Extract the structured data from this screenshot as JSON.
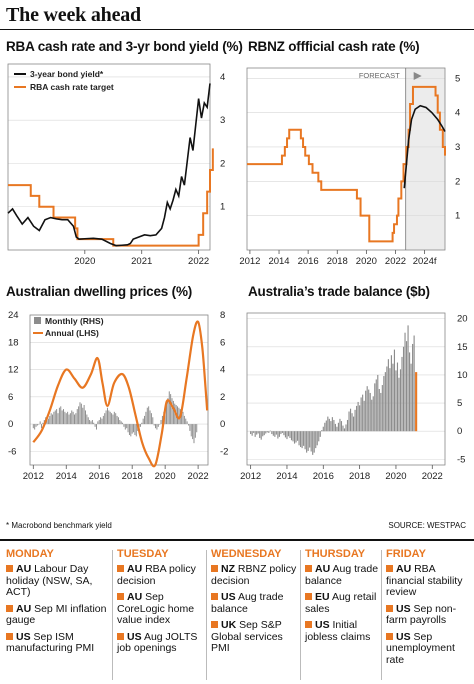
{
  "header": {
    "title": "The week ahead"
  },
  "colors": {
    "orange": "#e87722",
    "black": "#111111",
    "grey": "#8c8c8c"
  },
  "chart_data": [
    {
      "type": "line",
      "title": "RBA cash rate and 3-yr bond yield (%)",
      "x_ticks": [
        "2020",
        "2021",
        "2022"
      ],
      "y_ticks": [
        "1",
        "2",
        "3",
        "4"
      ],
      "ylim": [
        0,
        4.3
      ],
      "xlim": [
        2019.0,
        2022.55
      ],
      "y_axis_side": "right",
      "legend": "top-left",
      "series": [
        {
          "name": "3-year bond yield*",
          "color": "#111111",
          "points": [
            [
              2019.0,
              0.85
            ],
            [
              2019.08,
              0.95
            ],
            [
              2019.15,
              0.8
            ],
            [
              2019.25,
              0.6
            ],
            [
              2019.35,
              0.75
            ],
            [
              2019.45,
              0.55
            ],
            [
              2019.55,
              0.45
            ],
            [
              2019.65,
              0.7
            ],
            [
              2019.75,
              0.75
            ],
            [
              2019.85,
              0.72
            ],
            [
              2019.95,
              0.7
            ],
            [
              2020.05,
              0.7
            ],
            [
              2020.15,
              0.55
            ],
            [
              2020.2,
              0.3
            ],
            [
              2020.25,
              0.25
            ],
            [
              2020.35,
              0.26
            ],
            [
              2020.5,
              0.27
            ],
            [
              2020.65,
              0.25
            ],
            [
              2020.8,
              0.15
            ],
            [
              2020.9,
              0.1
            ],
            [
              2021.0,
              0.11
            ],
            [
              2021.1,
              0.12
            ],
            [
              2021.15,
              0.15
            ],
            [
              2021.2,
              0.25
            ],
            [
              2021.3,
              0.3
            ],
            [
              2021.4,
              0.35
            ],
            [
              2021.5,
              0.33
            ],
            [
              2021.6,
              0.35
            ],
            [
              2021.7,
              0.5
            ],
            [
              2021.75,
              0.75
            ],
            [
              2021.8,
              1.1
            ],
            [
              2021.85,
              0.95
            ],
            [
              2021.9,
              1.15
            ],
            [
              2021.95,
              1.4
            ],
            [
              2022.0,
              1.25
            ],
            [
              2022.05,
              1.7
            ],
            [
              2022.1,
              1.5
            ],
            [
              2022.15,
              2.05
            ],
            [
              2022.2,
              2.6
            ],
            [
              2022.25,
              2.3
            ],
            [
              2022.3,
              2.9
            ],
            [
              2022.35,
              3.5
            ],
            [
              2022.4,
              3.05
            ],
            [
              2022.45,
              3.4
            ],
            [
              2022.5,
              3.3
            ],
            [
              2022.55,
              3.85
            ]
          ]
        },
        {
          "name": "RBA cash rate target",
          "color": "#e87722",
          "step": true,
          "points": [
            [
              2019.0,
              1.5
            ],
            [
              2019.4,
              1.25
            ],
            [
              2019.55,
              1.0
            ],
            [
              2019.8,
              0.75
            ],
            [
              2020.18,
              0.5
            ],
            [
              2020.22,
              0.25
            ],
            [
              2020.85,
              0.1
            ],
            [
              2022.35,
              0.35
            ],
            [
              2022.43,
              0.85
            ],
            [
              2022.5,
              1.35
            ],
            [
              2022.55,
              1.85
            ],
            [
              2022.6,
              2.35
            ]
          ]
        }
      ]
    },
    {
      "type": "line",
      "title": "RBNZ offficial cash rate (%)",
      "annotation": "FORECAST",
      "x_ticks": [
        "2012",
        "2014",
        "2016",
        "2018",
        "2020",
        "2022",
        "2024f"
      ],
      "y_ticks": [
        "1",
        "2",
        "3",
        "4",
        "5"
      ],
      "ylim": [
        0,
        5.3
      ],
      "xlim": [
        2011.8,
        2025.4
      ],
      "forecast_start": 2022.7,
      "y_axis_side": "right",
      "series": [
        {
          "name": "Official cash rate",
          "color": "#e87722",
          "step": true,
          "points": [
            [
              2011.8,
              2.5
            ],
            [
              2014.2,
              2.75
            ],
            [
              2014.4,
              3.0
            ],
            [
              2014.55,
              3.25
            ],
            [
              2014.7,
              3.5
            ],
            [
              2015.5,
              3.25
            ],
            [
              2015.65,
              3.0
            ],
            [
              2015.8,
              2.75
            ],
            [
              2016.05,
              2.5
            ],
            [
              2016.3,
              2.25
            ],
            [
              2016.7,
              2.0
            ],
            [
              2016.9,
              1.75
            ],
            [
              2019.35,
              1.5
            ],
            [
              2019.6,
              1.0
            ],
            [
              2020.2,
              0.25
            ],
            [
              2021.8,
              0.5
            ],
            [
              2021.9,
              0.75
            ],
            [
              2022.1,
              1.0
            ],
            [
              2022.2,
              1.5
            ],
            [
              2022.4,
              2.0
            ],
            [
              2022.55,
              2.5
            ],
            [
              2022.75,
              3.0
            ],
            [
              2022.9,
              3.5
            ],
            [
              2023.0,
              4.25
            ],
            [
              2023.2,
              4.75
            ],
            [
              2024.75,
              4.5
            ],
            [
              2024.9,
              4.0
            ],
            [
              2025.05,
              3.5
            ],
            [
              2025.25,
              3.0
            ],
            [
              2025.4,
              2.75
            ]
          ]
        },
        {
          "name": "Forecast path",
          "color": "#111111",
          "points": [
            [
              2022.6,
              1.8
            ],
            [
              2022.75,
              2.5
            ],
            [
              2022.9,
              3.2
            ],
            [
              2023.1,
              3.8
            ],
            [
              2023.35,
              4.1
            ],
            [
              2023.7,
              4.2
            ],
            [
              2024.1,
              4.15
            ],
            [
              2024.5,
              4.0
            ],
            [
              2024.9,
              3.8
            ],
            [
              2025.2,
              3.6
            ],
            [
              2025.4,
              3.45
            ]
          ]
        }
      ]
    },
    {
      "type": "bar",
      "title": "Australian dwelling prices (%)",
      "x_ticks": [
        "2012",
        "2014",
        "2016",
        "2018",
        "2020",
        "2022"
      ],
      "y_ticks_left": [
        "-6",
        "0",
        "6",
        "12",
        "18",
        "24"
      ],
      "y_ticks_right": [
        "-2",
        "0",
        "2",
        "4",
        "6",
        "8"
      ],
      "ylim_left": [
        -9,
        24
      ],
      "ylim_right": [
        -3,
        8
      ],
      "xlim": [
        2011.8,
        2022.6
      ],
      "legend": "top-left",
      "series": [
        {
          "name": "Monthly (RHS)",
          "color": "#8c8c8c",
          "axis": "right",
          "monthly_start": 2012.0,
          "values": [
            -0.3,
            -0.4,
            -0.2,
            -0.1,
            0.0,
            0.2,
            -0.3,
            0.1,
            0.3,
            0.5,
            0.3,
            0.4,
            0.6,
            0.8,
            0.7,
            0.9,
            1.0,
            1.1,
            0.8,
            1.2,
            1.3,
            1.0,
            1.1,
            0.9,
            0.8,
            0.9,
            0.7,
            0.8,
            1.0,
            0.9,
            0.7,
            0.8,
            1.1,
            1.3,
            1.6,
            1.5,
            1.2,
            1.4,
            1.0,
            0.7,
            0.5,
            0.3,
            0.2,
            0.3,
            0.1,
            -0.2,
            -0.4,
            0.2,
            0.3,
            0.5,
            0.4,
            0.6,
            0.8,
            1.0,
            1.2,
            1.0,
            0.9,
            0.8,
            0.7,
            0.9,
            0.8,
            0.6,
            0.5,
            0.3,
            0.2,
            0.1,
            -0.2,
            -0.4,
            -0.3,
            -0.6,
            -0.8,
            -0.9,
            -0.7,
            -0.6,
            -0.8,
            -0.9,
            -0.5,
            -0.3,
            -0.2,
            0.1,
            0.4,
            0.6,
            0.9,
            1.2,
            1.3,
            1.0,
            0.8,
            0.5,
            -0.1,
            -0.3,
            -0.4,
            -0.2,
            0.0,
            0.3,
            0.6,
            0.9,
            1.2,
            1.6,
            1.9,
            2.4,
            2.2,
            1.9,
            1.7,
            1.5,
            1.4,
            1.3,
            1.2,
            1.1,
            1.0,
            0.9,
            0.6,
            0.4,
            0.2,
            -0.1,
            -0.5,
            -0.9,
            -1.1,
            -1.4,
            -1.0,
            -0.6
          ]
        },
        {
          "name": "Annual (LHS)",
          "color": "#e87722",
          "axis": "left",
          "points": [
            [
              2012.0,
              -4.0
            ],
            [
              2012.5,
              -1.5
            ],
            [
              2013.0,
              3.0
            ],
            [
              2013.5,
              8.5
            ],
            [
              2014.0,
              12.0
            ],
            [
              2014.5,
              10.0
            ],
            [
              2015.0,
              8.0
            ],
            [
              2015.5,
              11.0
            ],
            [
              2015.9,
              14.5
            ],
            [
              2016.2,
              9.0
            ],
            [
              2016.5,
              4.0
            ],
            [
              2016.9,
              9.0
            ],
            [
              2017.4,
              11.0
            ],
            [
              2017.8,
              8.0
            ],
            [
              2018.2,
              2.0
            ],
            [
              2018.6,
              -4.0
            ],
            [
              2019.0,
              -7.5
            ],
            [
              2019.4,
              -9.0
            ],
            [
              2019.8,
              -2.0
            ],
            [
              2020.1,
              5.0
            ],
            [
              2020.5,
              3.5
            ],
            [
              2020.9,
              1.5
            ],
            [
              2021.3,
              10.0
            ],
            [
              2021.7,
              19.5
            ],
            [
              2022.0,
              22.5
            ],
            [
              2022.25,
              17.0
            ],
            [
              2022.45,
              8.0
            ],
            [
              2022.55,
              3.0
            ]
          ]
        }
      ]
    },
    {
      "type": "bar",
      "title": "Australia’s trade balance ($b)",
      "x_ticks": [
        "2012",
        "2014",
        "2016",
        "2018",
        "2020",
        "2022"
      ],
      "y_ticks": [
        "-5",
        "0",
        "5",
        "10",
        "15",
        "20"
      ],
      "ylim": [
        -6,
        21
      ],
      "xlim": [
        2011.8,
        2022.7
      ],
      "y_axis_side": "right",
      "highlight_last": true,
      "monthly_start": 2012.0,
      "values": [
        -0.5,
        -0.8,
        -0.3,
        -1.0,
        -0.6,
        -0.4,
        -1.2,
        -1.5,
        -0.9,
        -0.7,
        -0.4,
        -0.2,
        -0.3,
        0.1,
        -0.5,
        -0.8,
        -1.0,
        -0.6,
        -1.3,
        -1.0,
        -0.5,
        -0.3,
        -0.7,
        -1.1,
        -1.4,
        -0.9,
        -1.2,
        -1.6,
        -1.8,
        -2.2,
        -2.0,
        -1.7,
        -2.5,
        -2.8,
        -3.0,
        -2.6,
        -3.2,
        -3.8,
        -3.5,
        -2.9,
        -3.6,
        -4.2,
        -3.8,
        -3.0,
        -2.5,
        -1.8,
        -1.0,
        0.2,
        0.8,
        1.5,
        1.9,
        2.6,
        2.2,
        1.8,
        2.5,
        2.0,
        1.3,
        0.8,
        1.5,
        2.2,
        1.8,
        1.0,
        0.5,
        1.2,
        2.0,
        3.5,
        4.0,
        3.2,
        2.6,
        3.8,
        4.5,
        5.2,
        4.6,
        6.0,
        6.5,
        5.4,
        7.2,
        8.0,
        7.4,
        6.8,
        5.6,
        6.2,
        8.5,
        9.2,
        10.0,
        7.5,
        6.8,
        8.2,
        9.8,
        10.5,
        11.5,
        12.8,
        11.2,
        13.5,
        12.0,
        14.5,
        10.8,
        12.2,
        9.5,
        11.0,
        13.2,
        15.0,
        17.5,
        16.0,
        18.8,
        14.0,
        12.0,
        15.5,
        17.0,
        10.5
      ]
    }
  ],
  "footnote": {
    "left": "* Macrobond benchmark yield",
    "right": "SOURCE: WESTPAC"
  },
  "week": [
    {
      "day": "MONDAY",
      "events": [
        {
          "cc": "AU",
          "text": "Labour Day holiday (NSW, SA, ACT)"
        },
        {
          "cc": "AU",
          "text": "Sep MI inflation gauge"
        },
        {
          "cc": "US",
          "text": "Sep ISM manufacturing PMI"
        }
      ]
    },
    {
      "day": "TUESDAY",
      "events": [
        {
          "cc": "AU",
          "text": "RBA policy decision"
        },
        {
          "cc": "AU",
          "text": "Sep CoreLogic home value index"
        },
        {
          "cc": "US",
          "text": "Aug JOLTS job openings"
        }
      ]
    },
    {
      "day": "WEDNESDAY",
      "events": [
        {
          "cc": "NZ",
          "text": "RBNZ policy decision"
        },
        {
          "cc": "US",
          "text": "Aug trade balance"
        },
        {
          "cc": "UK",
          "text": "Sep S&P Global services PMI"
        }
      ]
    },
    {
      "day": "THURSDAY",
      "events": [
        {
          "cc": "AU",
          "text": "Aug trade balance"
        },
        {
          "cc": "EU",
          "text": "Aug retail sales"
        },
        {
          "cc": "US",
          "text": "Initial jobless claims"
        }
      ]
    },
    {
      "day": "FRIDAY",
      "events": [
        {
          "cc": "AU",
          "text": "RBA financial stability review"
        },
        {
          "cc": "US",
          "text": "Sep non-farm payrolls"
        },
        {
          "cc": "US",
          "text": "Sep unemployment rate"
        }
      ]
    }
  ]
}
